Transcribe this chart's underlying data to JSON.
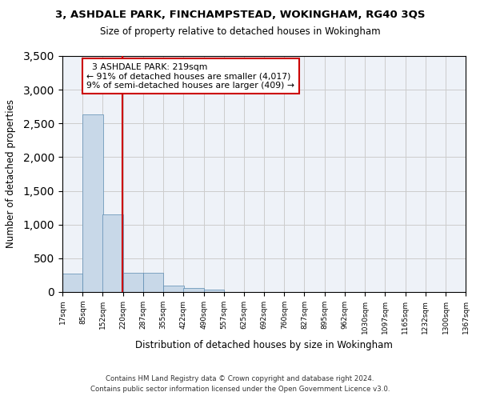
{
  "title": "3, ASHDALE PARK, FINCHAMPSTEAD, WOKINGHAM, RG40 3QS",
  "subtitle": "Size of property relative to detached houses in Wokingham",
  "xlabel": "Distribution of detached houses by size in Wokingham",
  "ylabel": "Number of detached properties",
  "bar_color": "#c8d8e8",
  "bar_edge_color": "#5a8ab0",
  "grid_color": "#cccccc",
  "background_color": "#eef2f8",
  "annotation_line_color": "#cc0000",
  "annotation_box_color": "#cc0000",
  "annotation_text": "  3 ASHDALE PARK: 219sqm\n← 91% of detached houses are smaller (4,017)\n9% of semi-detached houses are larger (409) →",
  "property_size_sqm": 219,
  "footer_line1": "Contains HM Land Registry data © Crown copyright and database right 2024.",
  "footer_line2": "Contains public sector information licensed under the Open Government Licence v3.0.",
  "bin_edges": [
    17,
    85,
    152,
    220,
    287,
    355,
    422,
    490,
    557,
    625,
    692,
    760,
    827,
    895,
    962,
    1030,
    1097,
    1165,
    1232,
    1300,
    1367
  ],
  "bin_labels": [
    "17sqm",
    "85sqm",
    "152sqm",
    "220sqm",
    "287sqm",
    "355sqm",
    "422sqm",
    "490sqm",
    "557sqm",
    "625sqm",
    "692sqm",
    "760sqm",
    "827sqm",
    "895sqm",
    "962sqm",
    "1030sqm",
    "1097sqm",
    "1165sqm",
    "1232sqm",
    "1300sqm",
    "1367sqm"
  ],
  "bar_heights": [
    270,
    2630,
    1150,
    290,
    290,
    90,
    55,
    35,
    5,
    2,
    2,
    1,
    1,
    1,
    0,
    0,
    0,
    0,
    0,
    0
  ],
  "ylim": [
    0,
    3500
  ],
  "yticks": [
    0,
    500,
    1000,
    1500,
    2000,
    2500,
    3000,
    3500
  ]
}
